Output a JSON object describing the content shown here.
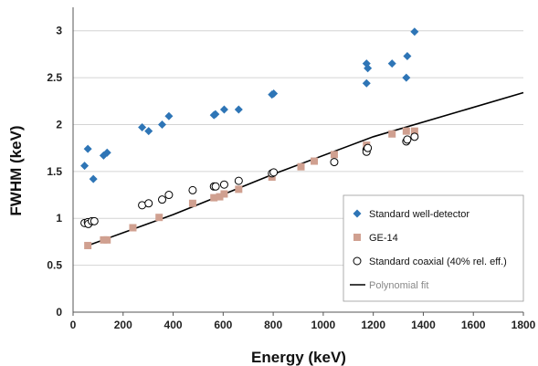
{
  "chart_data": {
    "type": "scatter",
    "xlabel": "Energy (keV)",
    "ylabel": "FWHM (keV)",
    "xlim": [
      0,
      1800
    ],
    "ylim": [
      0,
      3.25
    ],
    "xticks": [
      "0",
      "200",
      "400",
      "600",
      "800",
      "1000",
      "1200",
      "1400",
      "1600",
      "1800"
    ],
    "yticks": [
      "0",
      "0.5",
      "1",
      "1.5",
      "2",
      "2.5",
      "3"
    ],
    "xtick_values": [
      0,
      200,
      400,
      600,
      800,
      1000,
      1200,
      1400,
      1600,
      1800
    ],
    "ytick_values": [
      0,
      0.5,
      1,
      1.5,
      2,
      2.5,
      3
    ],
    "grid": "horizontal",
    "legend_position": "bottom-right",
    "series": [
      {
        "name": "Standard well-detector",
        "marker": "diamond",
        "color": "#2E75B6",
        "points": [
          [
            46,
            1.56
          ],
          [
            59,
            1.74
          ],
          [
            81,
            1.42
          ],
          [
            122,
            1.67
          ],
          [
            136,
            1.7
          ],
          [
            276,
            1.97
          ],
          [
            302,
            1.93
          ],
          [
            356,
            2.0
          ],
          [
            383,
            2.09
          ],
          [
            563,
            2.1
          ],
          [
            569,
            2.11
          ],
          [
            604,
            2.16
          ],
          [
            662,
            2.16
          ],
          [
            795,
            2.32
          ],
          [
            802,
            2.33
          ],
          [
            1173,
            2.65
          ],
          [
            1173,
            2.44
          ],
          [
            1178,
            2.6
          ],
          [
            1275,
            2.65
          ],
          [
            1332,
            2.5
          ],
          [
            1336,
            2.73
          ],
          [
            1365,
            2.99
          ]
        ]
      },
      {
        "name": "GE-14",
        "marker": "square",
        "color": "#D0A090",
        "points": [
          [
            59,
            0.71
          ],
          [
            122,
            0.77
          ],
          [
            136,
            0.77
          ],
          [
            239,
            0.9
          ],
          [
            344,
            1.01
          ],
          [
            478,
            1.16
          ],
          [
            563,
            1.22
          ],
          [
            586,
            1.23
          ],
          [
            604,
            1.26
          ],
          [
            662,
            1.31
          ],
          [
            795,
            1.44
          ],
          [
            911,
            1.55
          ],
          [
            964,
            1.61
          ],
          [
            1044,
            1.68
          ],
          [
            1173,
            1.78
          ],
          [
            1275,
            1.9
          ],
          [
            1332,
            1.93
          ],
          [
            1365,
            1.93
          ]
        ]
      },
      {
        "name": "Standard coaxial (40% rel. eff.)",
        "marker": "circle",
        "color": "#000000",
        "points": [
          [
            46,
            0.95
          ],
          [
            59,
            0.96
          ],
          [
            61,
            0.94
          ],
          [
            75,
            0.97
          ],
          [
            85,
            0.97
          ],
          [
            276,
            1.14
          ],
          [
            302,
            1.16
          ],
          [
            356,
            1.2
          ],
          [
            383,
            1.25
          ],
          [
            478,
            1.3
          ],
          [
            563,
            1.34
          ],
          [
            570,
            1.34
          ],
          [
            604,
            1.36
          ],
          [
            662,
            1.4
          ],
          [
            795,
            1.48
          ],
          [
            802,
            1.49
          ],
          [
            1044,
            1.6
          ],
          [
            1173,
            1.73
          ],
          [
            1173,
            1.71
          ],
          [
            1178,
            1.75
          ],
          [
            1332,
            1.82
          ],
          [
            1336,
            1.84
          ],
          [
            1365,
            1.87
          ]
        ]
      }
    ],
    "fit": {
      "name": "Polynomial fit",
      "color": "#000000",
      "points": [
        [
          59,
          0.71
        ],
        [
          400,
          1.04
        ],
        [
          800,
          1.47
        ],
        [
          1200,
          1.87
        ],
        [
          1800,
          2.34
        ]
      ]
    }
  }
}
